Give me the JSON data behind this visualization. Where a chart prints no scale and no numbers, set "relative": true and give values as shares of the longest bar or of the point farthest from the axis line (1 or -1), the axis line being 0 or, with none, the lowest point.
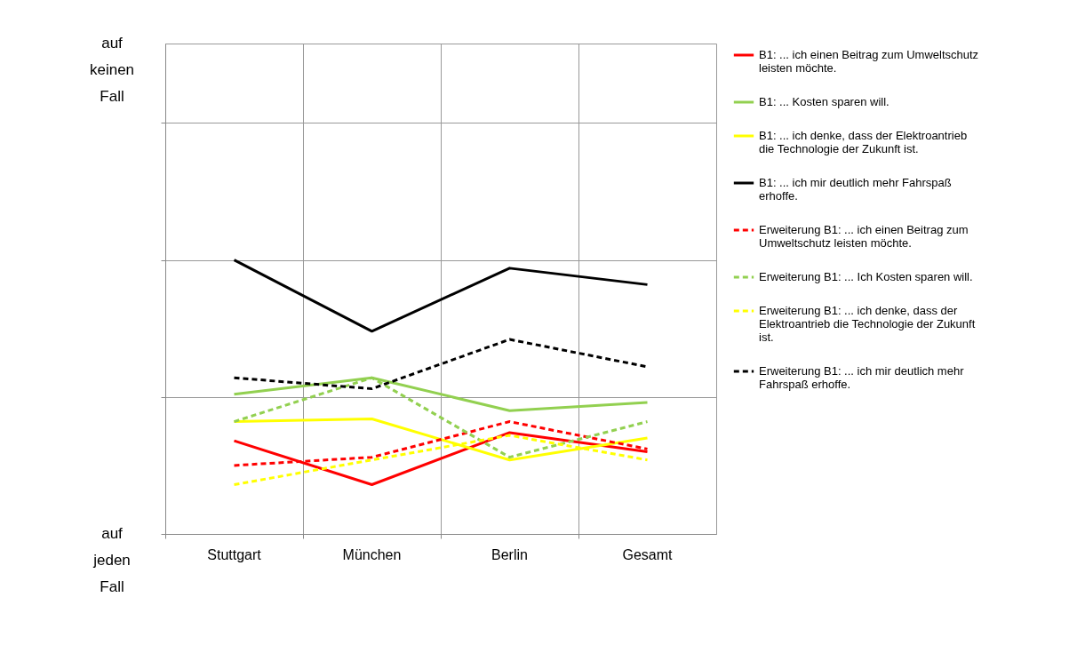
{
  "chart_data": {
    "type": "line",
    "relative": true,
    "grid": true,
    "legend": "right",
    "categories": [
      "Stuttgart",
      "München",
      "Berlin",
      "Gesamt"
    ],
    "annotations": [
      "auf keinen Fall",
      "auf jeden Fall"
    ],
    "series": [
      {
        "name": "B1: ... ich einen Beitrag zum Umweltschutz leisten möchte.",
        "color": "#ff0000",
        "line_style": "solid",
        "values": [
          0.34,
          0.18,
          0.37,
          0.3
        ]
      },
      {
        "name": "B1: ... Kosten sparen will.",
        "color": "#92d050",
        "line_style": "solid",
        "values": [
          0.51,
          0.57,
          0.45,
          0.48
        ]
      },
      {
        "name": "B1: ... ich denke, dass der Elektroantrieb die Technologie der Zukunft ist.",
        "color": "#ffff00",
        "line_style": "solid",
        "values": [
          0.41,
          0.42,
          0.27,
          0.35
        ]
      },
      {
        "name": "B1: ... ich mir deutlich mehr Fahrspaß erhoffe.",
        "color": "#000000",
        "line_style": "solid",
        "values": [
          1.0,
          0.74,
          0.97,
          0.91
        ]
      },
      {
        "name": "Erweiterung B1: ... ich einen Beitrag zum Umweltschutz leisten möchte.",
        "color": "#ff0000",
        "line_style": "dashed",
        "values": [
          0.25,
          0.28,
          0.41,
          0.31
        ]
      },
      {
        "name": "Erweiterung B1: ... Ich Kosten sparen will.",
        "color": "#92d050",
        "line_style": "dashed",
        "values": [
          0.41,
          0.57,
          0.28,
          0.41
        ]
      },
      {
        "name": "Erweiterung B1: ... ich denke, dass der Elektroantrieb die Technologie der Zukunft ist.",
        "color": "#ffff00",
        "line_style": "dashed",
        "values": [
          0.18,
          0.27,
          0.36,
          0.27
        ]
      },
      {
        "name": "Erweiterung B1: ... ich mir deutlich mehr Fahrspaß erhoffe.",
        "color": "#000000",
        "line_style": "dashed",
        "values": [
          0.57,
          0.53,
          0.71,
          0.61
        ]
      }
    ]
  }
}
